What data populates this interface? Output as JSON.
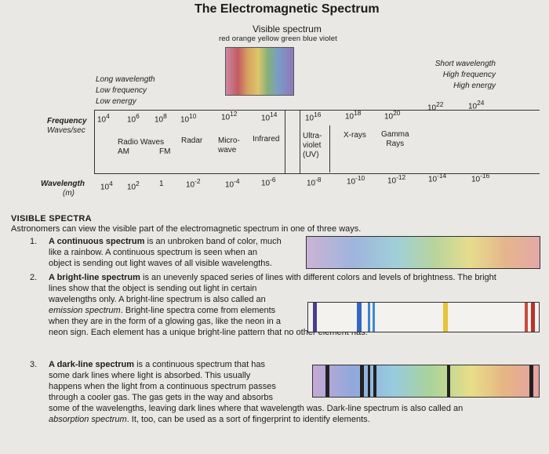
{
  "title": "The Electromagnetic Spectrum",
  "visible": {
    "label": "Visible spectrum",
    "colors": "red orange yellow green blue violet"
  },
  "long": {
    "l1": "Long wavelength",
    "l2": "Low frequency",
    "l3": "Low energy"
  },
  "short": {
    "l1": "Short wavelength",
    "l2": "High frequency",
    "l3": "High energy"
  },
  "freq": {
    "label": "Frequency",
    "unit": "Waves/sec",
    "b": "10",
    "e": [
      "4",
      "6",
      "8",
      "10",
      "12",
      "14",
      "16",
      "18",
      "20",
      "22",
      "24"
    ]
  },
  "bands": {
    "radio": "Radio Waves",
    "am": "AM",
    "fm": "FM",
    "radar": "Radar",
    "micro1": "Micro-",
    "micro2": "wave",
    "ir": "Infrared",
    "uv1": "Ultra-",
    "uv2": "violet",
    "uv3": "(UV)",
    "xray": "X-rays",
    "g1": "Gamma",
    "g2": "Rays"
  },
  "wave": {
    "label": "Wavelength",
    "unit": "(m)",
    "v": [
      {
        "b": "10",
        "e": "4"
      },
      {
        "b": "10",
        "e": "2"
      },
      {
        "b": "1",
        "e": ""
      },
      {
        "b": "10",
        "e": "-2"
      },
      {
        "b": "10",
        "e": "-4"
      },
      {
        "b": "10",
        "e": "-6"
      },
      {
        "b": "10",
        "e": "-8"
      },
      {
        "b": "10",
        "e": "-10"
      },
      {
        "b": "10",
        "e": "-12"
      },
      {
        "b": "10",
        "e": "-14"
      },
      {
        "b": "10",
        "e": "-16"
      }
    ]
  },
  "section": "VISIBLE SPECTRA",
  "intro": "Astronomers can view the visible part of the electromagnetic spectrum in one of three ways.",
  "item1": {
    "num": "1.",
    "term": "A continuous spectrum",
    "l1": " is an unbroken band of color, much",
    "l2": "like a rainbow.  A continuous spectrum is seen when an",
    "l3": "object is sending out light waves of all visible wavelengths."
  },
  "item2": {
    "num": "2.",
    "term": "A bright-line spectrum",
    "l1": " is an unevenly spaced series of lines with different colors and levels of brightness. The bright",
    "l2": "lines show that the object is sending out light in certain",
    "l3": "wavelengths only.  A bright-line spectrum is also called an",
    "l4a": "emission spectrum",
    "l4b": ".  Bright-line spectra come from elements",
    "l5": "when they are in the form of a glowing gas, like the neon in a",
    "l6": "neon sign.  Each element has a unique bright-line pattern that no other element has."
  },
  "item3": {
    "num": "3.",
    "term": "A dark-line spectrum",
    "l1": " is a continuous spectrum that has",
    "l2": "some dark lines where light is absorbed.  This usually",
    "l3": "happens when the light from a continuous spectrum passes",
    "l4": "through a cooler gas.  The gas gets in the way and absorbs",
    "l5": "some of the wavelengths, leaving dark lines where that wavelength was.  Dark-line spectrum is also called an",
    "l6a": "absorption spectrum",
    "l6b": ".  It, too, can be used as a sort of fingerprint to identify elements."
  }
}
